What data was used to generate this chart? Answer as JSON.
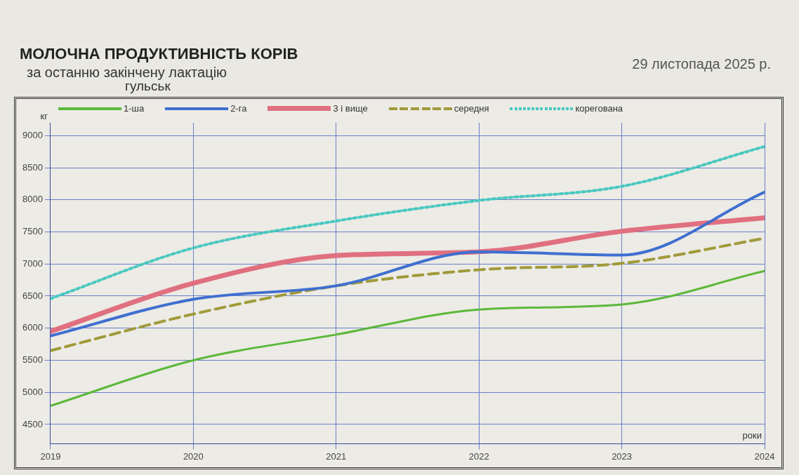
{
  "chart_data": {
    "type": "line",
    "title": "МОЛОЧНА ПРОДУКТИВНІСТЬ КОРІВ",
    "subtitle": "за останню закінчену лактацію",
    "annotations": [
      "гульськ",
      "29 листопада 2025 р."
    ],
    "xlabel": "роки",
    "ylabel": "кг",
    "x": [
      2019,
      2020,
      2021,
      2022,
      2023,
      2024
    ],
    "series": [
      {
        "name": "1-ша",
        "color": "#5cb83a",
        "line_style": "solid",
        "values": [
          4790,
          5500,
          5900,
          6290,
          6370,
          6890
        ]
      },
      {
        "name": "2-га",
        "color": "#3f6fd0",
        "line_style": "solid",
        "values": [
          5880,
          6450,
          6660,
          7190,
          7140,
          8120
        ]
      },
      {
        "name": "3 і вище",
        "color": "#e07080",
        "line_style": "solid",
        "values": [
          5950,
          6700,
          7130,
          7190,
          7510,
          7720
        ]
      },
      {
        "name": "середня",
        "color": "#a09a3a",
        "line_style": "dashed",
        "values": [
          5650,
          6220,
          6660,
          6910,
          7010,
          7400
        ]
      },
      {
        "name": "корегована",
        "color": "#48c8c0",
        "line_style": "dotted",
        "values": [
          6460,
          7250,
          7670,
          7990,
          8210,
          8830
        ]
      }
    ],
    "xlim": [
      2019,
      2024
    ],
    "xticks": [
      2019,
      2020,
      2021,
      2022,
      2023,
      2024
    ],
    "ylim": [
      4200,
      9200
    ],
    "yticks": [
      4500,
      5000,
      5500,
      6000,
      6500,
      7000,
      7500,
      8000,
      8500,
      9000
    ],
    "grid": true,
    "legend": "top",
    "marker": "none"
  }
}
